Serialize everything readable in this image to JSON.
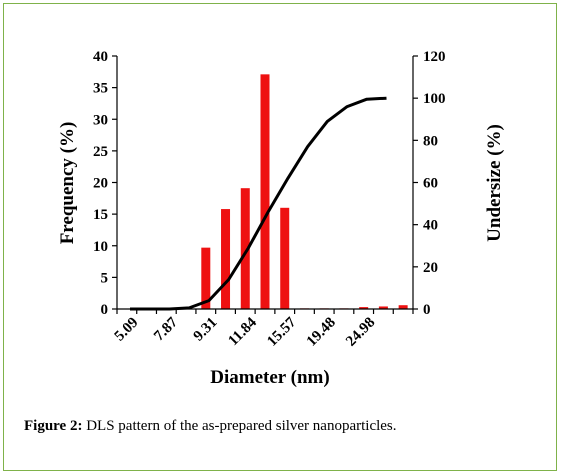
{
  "chart_data": {
    "type": "bar+line",
    "x_tick_labels": [
      "5.09",
      "7.87",
      "9.31",
      "11.84",
      "15.57",
      "19.48",
      "24.98"
    ],
    "bar_series": {
      "axis": "left",
      "color": "#ee1111",
      "values": [
        0,
        0,
        0,
        0,
        9.7,
        15.8,
        19.1,
        37.1,
        16,
        0.1,
        0.1,
        0.1,
        0.3,
        0.4,
        0.6
      ]
    },
    "line_series": {
      "axis": "right",
      "color": "#000000",
      "values": [
        0,
        0,
        0,
        0.5,
        4,
        14,
        29,
        46,
        62,
        77,
        89,
        96,
        99.5,
        100
      ]
    },
    "left_axis": {
      "label": "Frequency (%)",
      "ylim": [
        0,
        40
      ],
      "ticks": [
        0,
        5,
        10,
        15,
        20,
        25,
        30,
        35,
        40
      ]
    },
    "right_axis": {
      "label": "Undersize (%)",
      "ylim": [
        0,
        120
      ],
      "ticks": [
        0,
        20,
        40,
        60,
        80,
        100,
        120
      ]
    },
    "xlabel": "Diameter (nm)",
    "grid": false,
    "legend": "none"
  },
  "caption": {
    "label": "Figure 2:",
    "text": " DLS pattern of the as-prepared silver nanoparticles."
  }
}
